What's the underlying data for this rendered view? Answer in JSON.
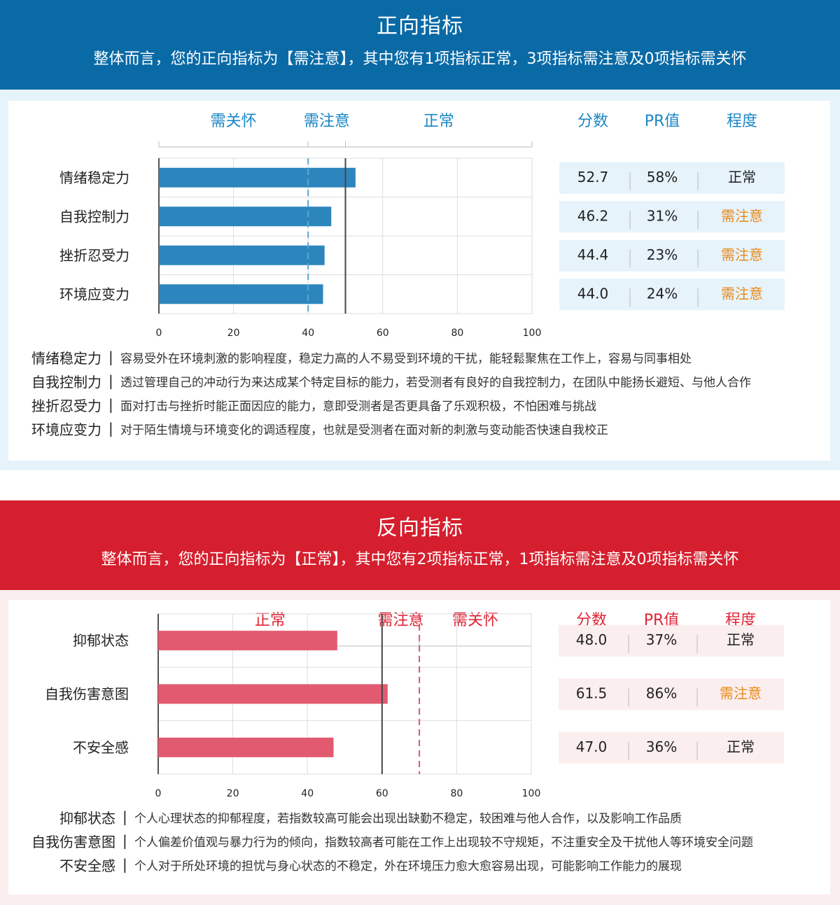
{
  "positive": {
    "title": "正向指标",
    "summary": "整体而言，您的正向指标为【需注意】，其中您有1项指标正常，3项指标需注意及0项指标需关怀",
    "colors": {
      "header": "#0a6aa6",
      "bg": "#e6f3fb",
      "bar": "#2c86bd",
      "row": "#e6f3fb",
      "heading": "#1a86c4",
      "warn": "#e88a1a",
      "dash": "#5aa8d2"
    },
    "zones": [
      "需关怀",
      "需注意",
      "正常"
    ],
    "table_headers": [
      "分数",
      "PR值",
      "程度"
    ],
    "rows": [
      {
        "name": "情绪稳定力",
        "score": "52.7",
        "pr": "58%",
        "level": "正常",
        "warn": false
      },
      {
        "name": "自我控制力",
        "score": "46.2",
        "pr": "31%",
        "level": "需注意",
        "warn": true
      },
      {
        "name": "挫折忍受力",
        "score": "44.4",
        "pr": "23%",
        "level": "需注意",
        "warn": true
      },
      {
        "name": "环境应变力",
        "score": "44.0",
        "pr": "24%",
        "level": "需注意",
        "warn": true
      }
    ],
    "descriptions": [
      {
        "name": "情绪稳定力",
        "text": "容易受外在环境刺激的影响程度，稳定力高的人不易受到环境的干扰，能轻鬆聚焦在工作上，容易与同事相处"
      },
      {
        "name": "自我控制力",
        "text": "透过管理自己的冲动行为来达成某个特定目标的能力，若受测者有良好的自我控制力，在团队中能扬长避短、与他人合作"
      },
      {
        "name": "挫折忍受力",
        "text": "面对打击与挫折时能正面因应的能力，意即受测者是否更具备了乐观积极，不怕困难与挑战"
      },
      {
        "name": "环境应变力",
        "text": "对于陌生情境与环境变化的调适程度，也就是受测者在面对新的刺激与变动能否快速自我校正"
      }
    ],
    "separator": "|"
  },
  "negative": {
    "title": "反向指标",
    "summary": "整体而言，您的正向指标为【正常】，其中您有2项指标正常，1项指标需注意及0项指标需关怀",
    "colors": {
      "header": "#d51f2e",
      "bg": "#fbeeef",
      "bar": "#e25a70",
      "row": "#fbeeef",
      "heading": "#e02434",
      "warn": "#e88a1a",
      "dash": "#e0507a"
    },
    "zones": [
      "正常",
      "需注意",
      "需关怀"
    ],
    "table_headers": [
      "分数",
      "PR值",
      "程度"
    ],
    "rows": [
      {
        "name": "抑郁状态",
        "score": "48.0",
        "pr": "37%",
        "level": "正常",
        "warn": false
      },
      {
        "name": "自我伤害意图",
        "score": "61.5",
        "pr": "86%",
        "level": "需注意",
        "warn": true
      },
      {
        "name": "不安全感",
        "score": "47.0",
        "pr": "36%",
        "level": "正常",
        "warn": false
      }
    ],
    "descriptions": [
      {
        "name": "抑郁状态",
        "text": "个人心理状态的抑郁程度，若指数较高可能会出现出缺勤不稳定，较困难与他人合作，以及影响工作品质"
      },
      {
        "name": "自我伤害意图",
        "text": "个人偏差价值观与暴力行为的倾向，指数较高者可能在工作上出现较不守规矩，不注重安全及干扰他人等环境安全问题"
      },
      {
        "name": "不安全感",
        "text": "个人对于所处环境的担忧与身心状态的不稳定，外在环境压力愈大愈容易出现，可能影响工作能力的展现"
      }
    ],
    "separator": "|"
  },
  "chart_data": [
    {
      "type": "bar",
      "orientation": "horizontal",
      "categories": [
        "情绪稳定力",
        "自我控制力",
        "挫折忍受力",
        "环境应变力"
      ],
      "values": [
        52.7,
        46.2,
        44.4,
        44.0
      ],
      "xlim": [
        0,
        100
      ],
      "xticks": [
        0,
        20,
        40,
        60,
        80,
        100
      ],
      "reference_lines": {
        "solid": 50,
        "dashed": 40
      },
      "zone_boundaries": [
        40,
        50
      ],
      "zone_labels": [
        "需关怀",
        "需注意",
        "正常"
      ],
      "grid": true
    },
    {
      "type": "bar",
      "orientation": "horizontal",
      "categories": [
        "抑郁状态",
        "自我伤害意图",
        "不安全感"
      ],
      "values": [
        48.0,
        61.5,
        47.0
      ],
      "xlim": [
        0,
        100
      ],
      "xticks": [
        0,
        20,
        40,
        60,
        80,
        100
      ],
      "reference_lines": {
        "solid": 60,
        "dashed": 70
      },
      "zone_boundaries": [
        60,
        70
      ],
      "zone_labels": [
        "正常",
        "需注意",
        "需关怀"
      ],
      "grid": true
    }
  ]
}
